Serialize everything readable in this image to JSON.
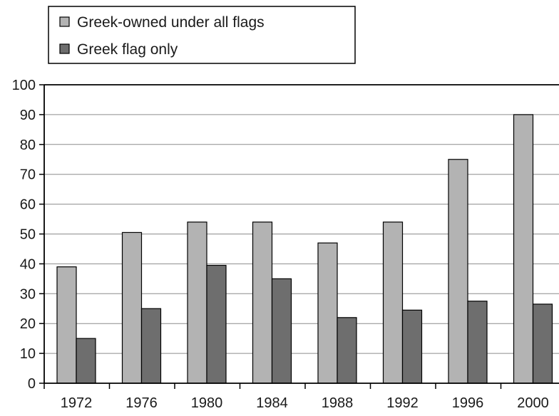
{
  "chart_data": {
    "type": "bar",
    "categories": [
      "1972",
      "1976",
      "1980",
      "1984",
      "1988",
      "1992",
      "1996",
      "2000"
    ],
    "series": [
      {
        "name": "Greek-owned under all flags",
        "color": "#b3b3b3",
        "values": [
          39,
          50.5,
          54,
          54,
          47,
          54,
          75,
          90
        ]
      },
      {
        "name": "Greek flag only",
        "color": "#6e6e6e",
        "values": [
          15,
          25,
          39.5,
          35,
          22,
          24.5,
          27.5,
          26.5
        ]
      }
    ],
    "ylim": [
      0,
      100
    ],
    "yticks": [
      0,
      10,
      20,
      30,
      40,
      50,
      60,
      70,
      80,
      90,
      100
    ],
    "grid": true,
    "legend_position": "top-left"
  }
}
